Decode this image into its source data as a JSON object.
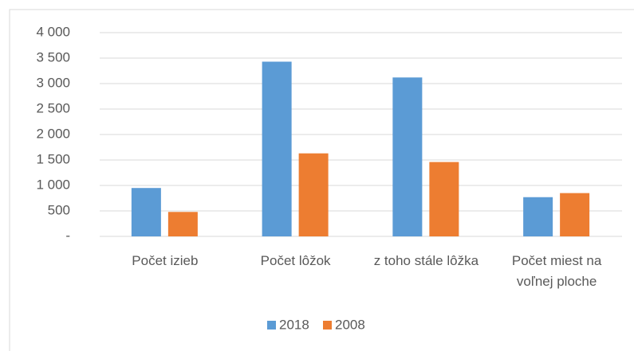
{
  "chart_data": {
    "type": "bar",
    "categories": [
      "Počet izieb",
      "Počet lôžok",
      "z toho stále lôžka",
      "Počet miest na voľnej ploche"
    ],
    "series": [
      {
        "name": "2018",
        "color": "#5b9bd5",
        "values": [
          950,
          3430,
          3120,
          770
        ]
      },
      {
        "name": "2008",
        "color": "#ed7d31",
        "values": [
          480,
          1630,
          1460,
          850
        ]
      }
    ],
    "ylim": [
      0,
      4000
    ],
    "yticks": [
      {
        "value": 0,
        "label": "-"
      },
      500,
      {
        "value": 1000,
        "label": "1 000"
      },
      {
        "value": 1500,
        "label": "1 500"
      },
      {
        "value": 2000,
        "label": "2 000"
      },
      {
        "value": 2500,
        "label": "2 500"
      },
      {
        "value": 3000,
        "label": "3 000"
      },
      {
        "value": 3500,
        "label": "3 500"
      },
      {
        "value": 4000,
        "label": "4 000"
      }
    ],
    "grid": true,
    "legend": "bottom"
  }
}
